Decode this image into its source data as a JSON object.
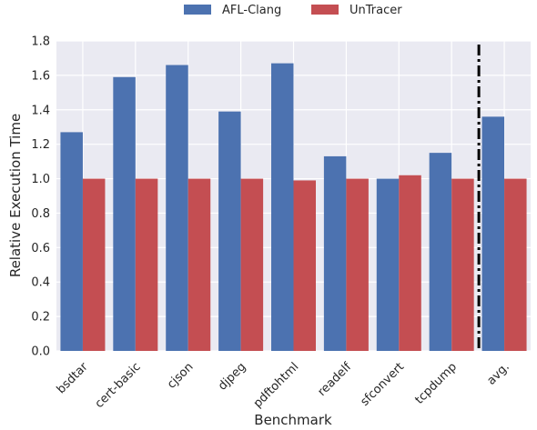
{
  "chart_data": {
    "type": "bar",
    "title": "",
    "xlabel": "Benchmark",
    "ylabel": "Relative Execution Time",
    "ylim": [
      0,
      1.8
    ],
    "yticks": [
      "0.0",
      "0.2",
      "0.4",
      "0.6",
      "0.8",
      "1.0",
      "1.2",
      "1.4",
      "1.6",
      "1.8"
    ],
    "grid": true,
    "legend_position": "top-center",
    "categories": [
      "bsdtar",
      "cert-basic",
      "cjson",
      "djpeg",
      "pdftohtml",
      "readelf",
      "sfconvert",
      "tcpdump",
      "avg."
    ],
    "series": [
      {
        "name": "AFL-Clang",
        "color": "#4c72b0",
        "values": [
          1.27,
          1.59,
          1.66,
          1.39,
          1.67,
          1.13,
          1.0,
          1.15,
          1.36
        ]
      },
      {
        "name": "UnTracer",
        "color": "#c44e52",
        "values": [
          1.0,
          1.0,
          1.0,
          1.0,
          0.99,
          1.0,
          1.02,
          1.0,
          1.0
        ]
      }
    ],
    "annotations": [
      {
        "type": "vertical-dash-dot-line",
        "between": [
          "tcpdump",
          "avg."
        ],
        "color": "#000000"
      }
    ]
  }
}
